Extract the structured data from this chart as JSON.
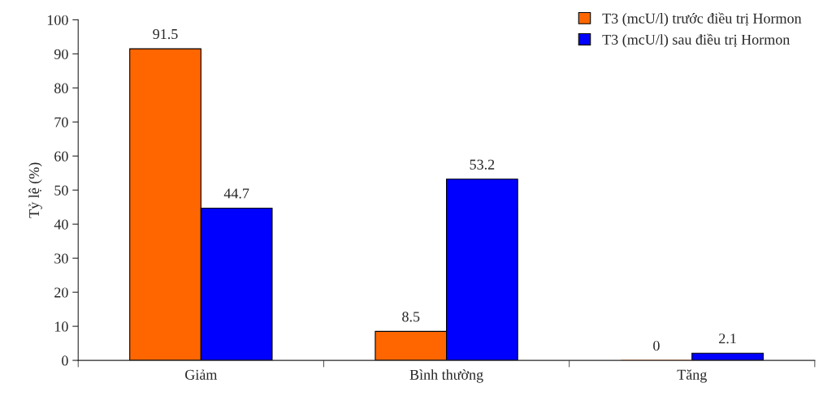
{
  "chart_data": {
    "type": "bar",
    "ylabel": "Tỷ lệ (%)",
    "categories": [
      "Giảm",
      "Bình thường",
      "Tăng"
    ],
    "series": [
      {
        "name": "T3 (mcU/l) trước điều trị Hormon",
        "color": "#ff6600",
        "values": [
          91.5,
          8.5,
          0
        ]
      },
      {
        "name": "T3 (mcU/l) sau điều trị Hormon",
        "color": "#0000ff",
        "values": [
          44.7,
          53.2,
          2.1
        ]
      }
    ],
    "ylim": [
      0,
      100
    ],
    "yticks": [
      0,
      10,
      20,
      30,
      40,
      50,
      60,
      70,
      80,
      90,
      100
    ],
    "grid": false,
    "legend": "top right",
    "data_labels": true
  }
}
